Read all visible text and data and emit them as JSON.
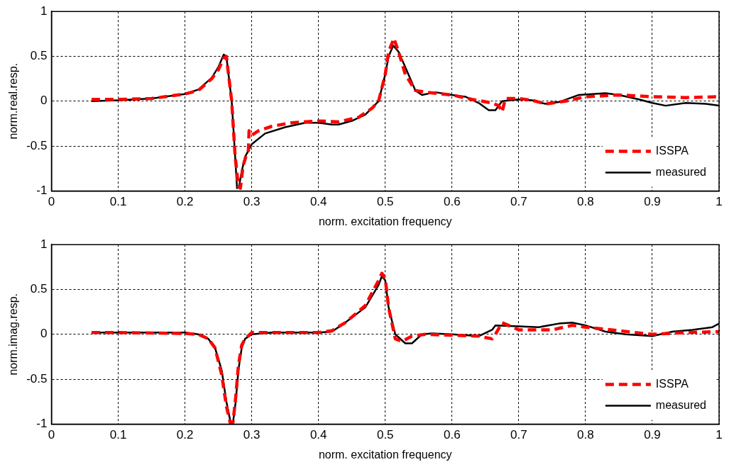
{
  "chart_data": [
    {
      "type": "line",
      "xlabel": "norm. excitation frequency",
      "ylabel": "norm.real.resp.",
      "xlim": [
        0,
        1
      ],
      "ylim": [
        -1,
        1
      ],
      "xticks": [
        0,
        0.1,
        0.2,
        0.3,
        0.4,
        0.5,
        0.6,
        0.7,
        0.8,
        0.9,
        1
      ],
      "yticks": [
        -1,
        -0.5,
        0,
        0.5,
        1
      ],
      "grid": true,
      "legend": "bottom right",
      "marker": "none",
      "series": [
        {
          "name": "ISSPA",
          "color": "#ff0000",
          "line_style": "dashed",
          "x": [
            0.06,
            0.1,
            0.15,
            0.2,
            0.22,
            0.24,
            0.25,
            0.258,
            0.262,
            0.27,
            0.275,
            0.28,
            0.283,
            0.287,
            0.292,
            0.295,
            0.296,
            0.3,
            0.31,
            0.33,
            0.36,
            0.4,
            0.43,
            0.46,
            0.48,
            0.49,
            0.5,
            0.505,
            0.513,
            0.52,
            0.53,
            0.545,
            0.56,
            0.6,
            0.63,
            0.66,
            0.67,
            0.675,
            0.68,
            0.7,
            0.72,
            0.74,
            0.77,
            0.8,
            0.85,
            0.9,
            0.95,
            1.0
          ],
          "values": [
            0.02,
            0.02,
            0.03,
            0.08,
            0.12,
            0.25,
            0.35,
            0.48,
            0.5,
            0.0,
            -0.6,
            -0.95,
            -0.97,
            -0.72,
            -0.6,
            -0.55,
            -0.33,
            -0.38,
            -0.33,
            -0.28,
            -0.24,
            -0.22,
            -0.23,
            -0.18,
            -0.08,
            0.0,
            0.3,
            0.55,
            0.7,
            0.55,
            0.3,
            0.12,
            0.1,
            0.07,
            0.02,
            -0.02,
            -0.05,
            -0.12,
            0.03,
            0.03,
            0.01,
            -0.03,
            0.0,
            0.05,
            0.07,
            0.05,
            0.04,
            0.05
          ]
        },
        {
          "name": "measured",
          "color": "#000000",
          "line_style": "solid",
          "x": [
            0.06,
            0.1,
            0.15,
            0.2,
            0.22,
            0.24,
            0.25,
            0.258,
            0.262,
            0.27,
            0.275,
            0.278,
            0.281,
            0.285,
            0.29,
            0.3,
            0.32,
            0.35,
            0.38,
            0.4,
            0.42,
            0.43,
            0.45,
            0.47,
            0.49,
            0.5,
            0.505,
            0.512,
            0.52,
            0.53,
            0.545,
            0.555,
            0.575,
            0.6,
            0.62,
            0.64,
            0.655,
            0.665,
            0.675,
            0.7,
            0.72,
            0.74,
            0.76,
            0.79,
            0.81,
            0.83,
            0.85,
            0.88,
            0.9,
            0.92,
            0.95,
            0.98,
            1.0
          ],
          "values": [
            0,
            0.01,
            0.03,
            0.08,
            0.13,
            0.26,
            0.38,
            0.52,
            0.5,
            0.0,
            -0.6,
            -0.97,
            -0.95,
            -0.78,
            -0.62,
            -0.48,
            -0.36,
            -0.29,
            -0.24,
            -0.24,
            -0.26,
            -0.26,
            -0.22,
            -0.15,
            0.0,
            0.3,
            0.5,
            0.62,
            0.55,
            0.38,
            0.12,
            0.07,
            0.1,
            0.07,
            0.05,
            -0.02,
            -0.1,
            -0.1,
            0.0,
            0.02,
            0.01,
            -0.03,
            -0.01,
            0.07,
            0.08,
            0.09,
            0.07,
            0.02,
            -0.02,
            -0.05,
            -0.02,
            -0.03,
            -0.05
          ]
        }
      ]
    },
    {
      "type": "line",
      "xlabel": "norm. excitation frequency",
      "ylabel": "norm.imag.resp.",
      "xlim": [
        0,
        1
      ],
      "ylim": [
        -1,
        1
      ],
      "xticks": [
        0,
        0.1,
        0.2,
        0.3,
        0.4,
        0.5,
        0.6,
        0.7,
        0.8,
        0.9,
        1
      ],
      "yticks": [
        -1,
        -0.5,
        0,
        0.5,
        1
      ],
      "grid": true,
      "legend": "bottom right",
      "marker": "none",
      "series": [
        {
          "name": "ISSPA",
          "color": "#ff0000",
          "line_style": "dashed",
          "x": [
            0.06,
            0.1,
            0.2,
            0.22,
            0.235,
            0.245,
            0.255,
            0.262,
            0.268,
            0.272,
            0.276,
            0.28,
            0.285,
            0.29,
            0.3,
            0.35,
            0.4,
            0.42,
            0.44,
            0.47,
            0.49,
            0.495,
            0.5,
            0.505,
            0.515,
            0.525,
            0.54,
            0.56,
            0.6,
            0.64,
            0.66,
            0.665,
            0.675,
            0.7,
            0.75,
            0.78,
            0.8,
            0.85,
            0.9,
            0.95,
            1.0
          ],
          "values": [
            0.02,
            0.02,
            0.01,
            0.0,
            -0.05,
            -0.15,
            -0.45,
            -0.8,
            -0.99,
            -0.98,
            -0.7,
            -0.35,
            -0.12,
            -0.05,
            0.02,
            0.02,
            0.02,
            0.04,
            0.13,
            0.32,
            0.6,
            0.68,
            0.62,
            0.3,
            -0.05,
            -0.08,
            -0.02,
            0.0,
            -0.01,
            -0.02,
            -0.05,
            0.0,
            0.13,
            0.05,
            0.05,
            0.1,
            0.08,
            0.04,
            0.0,
            0.02,
            0.03
          ]
        },
        {
          "name": "measured",
          "color": "#000000",
          "line_style": "solid",
          "x": [
            0.06,
            0.1,
            0.2,
            0.22,
            0.235,
            0.245,
            0.255,
            0.262,
            0.268,
            0.272,
            0.276,
            0.28,
            0.285,
            0.29,
            0.3,
            0.33,
            0.38,
            0.4,
            0.42,
            0.44,
            0.47,
            0.49,
            0.495,
            0.5,
            0.505,
            0.515,
            0.53,
            0.54,
            0.555,
            0.57,
            0.6,
            0.64,
            0.66,
            0.665,
            0.7,
            0.73,
            0.76,
            0.78,
            0.8,
            0.83,
            0.86,
            0.9,
            0.93,
            0.96,
            0.99,
            1.0
          ],
          "values": [
            0.02,
            0.02,
            0.02,
            0.0,
            -0.05,
            -0.15,
            -0.4,
            -0.75,
            -0.97,
            -0.98,
            -0.75,
            -0.4,
            -0.15,
            -0.05,
            0.0,
            0.02,
            0.02,
            0.02,
            0.03,
            0.13,
            0.3,
            0.55,
            0.65,
            0.6,
            0.3,
            0.0,
            -0.1,
            -0.1,
            0.0,
            0.01,
            0.0,
            -0.02,
            0.05,
            0.1,
            0.09,
            0.08,
            0.12,
            0.13,
            0.1,
            0.03,
            0.0,
            -0.02,
            0.03,
            0.05,
            0.08,
            0.12
          ]
        }
      ]
    }
  ]
}
